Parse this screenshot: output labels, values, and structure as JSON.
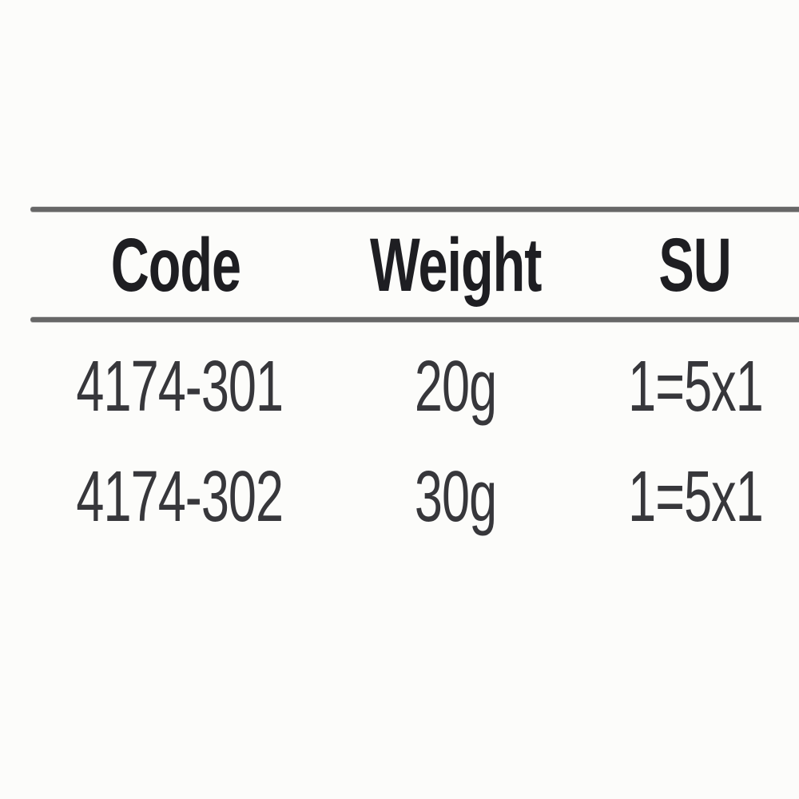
{
  "table": {
    "columns": [
      {
        "label": "Code"
      },
      {
        "label": "Weight"
      },
      {
        "label": "SU"
      }
    ],
    "rows": [
      {
        "code": "4174-301",
        "weight": "20g",
        "su": "1=5x1"
      },
      {
        "code": "4174-302",
        "weight": "30g",
        "su": "1=5x1"
      }
    ]
  },
  "colors": {
    "background": "#fcfcfa",
    "rule": "#676767",
    "header_text": "#1e1e22",
    "cell_text": "#37373b"
  }
}
